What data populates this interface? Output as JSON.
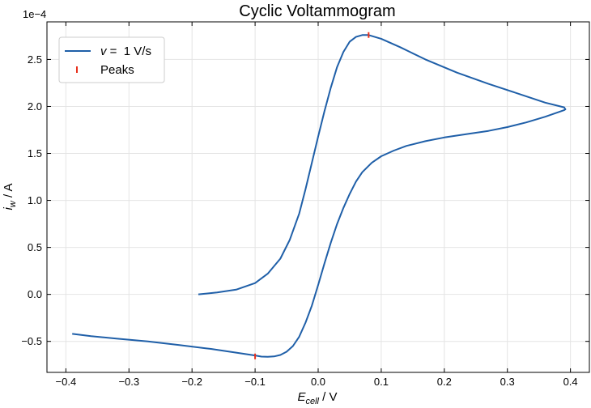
{
  "chart_data": {
    "type": "line",
    "title": "Cyclic Voltammogram",
    "xlabel": {
      "base": "E",
      "sub": "cell",
      "unit": " / V"
    },
    "ylabel": {
      "base": "i",
      "sub": "w",
      "unit": " / A"
    },
    "y_multiplier": "1e−4",
    "xlim": [
      -0.43,
      0.43
    ],
    "ylim": [
      -0.83,
      2.9
    ],
    "x_ticks": [
      -0.4,
      -0.3,
      -0.2,
      -0.1,
      0.0,
      0.1,
      0.2,
      0.3,
      0.4
    ],
    "x_tick_labels": [
      "−0.4",
      "−0.3",
      "−0.2",
      "−0.1",
      "0.0",
      "0.1",
      "0.2",
      "0.3",
      "0.4"
    ],
    "y_ticks": [
      -0.5,
      0.0,
      0.5,
      1.0,
      1.5,
      2.0,
      2.5
    ],
    "y_tick_labels": [
      "−0.5",
      "0.0",
      "0.5",
      "1.0",
      "1.5",
      "2.0",
      "2.5"
    ],
    "grid": true,
    "legend_position": "top-left",
    "series": [
      {
        "name": "v = 1 V/s",
        "legend_label": {
          "var": "v",
          "rest": " =  1 V/s"
        },
        "color": "#1f5fa8",
        "x": [
          -0.19,
          -0.16,
          -0.13,
          -0.1,
          -0.08,
          -0.06,
          -0.045,
          -0.03,
          -0.02,
          -0.01,
          0.0,
          0.01,
          0.02,
          0.03,
          0.04,
          0.05,
          0.06,
          0.07,
          0.08,
          0.1,
          0.13,
          0.17,
          0.22,
          0.27,
          0.32,
          0.36,
          0.39,
          0.392,
          0.39,
          0.36,
          0.33,
          0.3,
          0.27,
          0.24,
          0.2,
          0.17,
          0.14,
          0.12,
          0.1,
          0.085,
          0.07,
          0.06,
          0.05,
          0.04,
          0.03,
          0.02,
          0.01,
          0.0,
          -0.01,
          -0.02,
          -0.03,
          -0.04,
          -0.05,
          -0.06,
          -0.07,
          -0.08,
          -0.09,
          -0.1,
          -0.13,
          -0.17,
          -0.22,
          -0.27,
          -0.32,
          -0.36,
          -0.39
        ],
        "y": [
          0.0,
          0.02,
          0.05,
          0.12,
          0.22,
          0.38,
          0.58,
          0.86,
          1.12,
          1.4,
          1.68,
          1.95,
          2.2,
          2.42,
          2.58,
          2.69,
          2.74,
          2.76,
          2.76,
          2.72,
          2.63,
          2.5,
          2.36,
          2.24,
          2.13,
          2.04,
          1.99,
          1.97,
          1.96,
          1.89,
          1.83,
          1.78,
          1.74,
          1.71,
          1.67,
          1.63,
          1.58,
          1.53,
          1.47,
          1.4,
          1.3,
          1.2,
          1.07,
          0.92,
          0.75,
          0.55,
          0.33,
          0.1,
          -0.12,
          -0.3,
          -0.45,
          -0.55,
          -0.61,
          -0.645,
          -0.66,
          -0.665,
          -0.662,
          -0.65,
          -0.62,
          -0.58,
          -0.54,
          -0.5,
          -0.47,
          -0.445,
          -0.42
        ]
      }
    ],
    "peaks": {
      "name": "Peaks",
      "color": "#e8301c",
      "points": [
        {
          "x": 0.08,
          "y": 2.76
        },
        {
          "x": -0.1,
          "y": -0.66
        }
      ]
    }
  }
}
